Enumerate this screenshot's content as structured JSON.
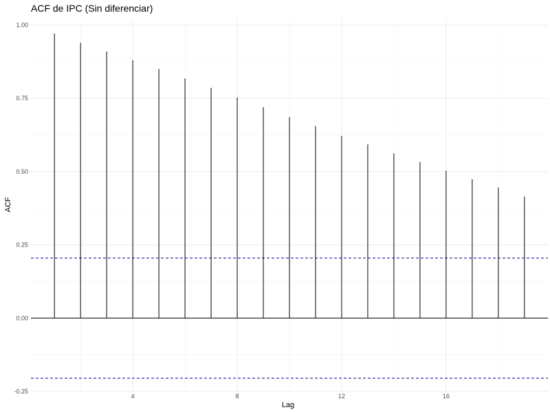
{
  "chart_data": {
    "type": "bar",
    "subtype": "acf-lollipop",
    "title": "ACF de IPC (Sin diferenciar)",
    "xlabel": "Lag",
    "ylabel": "ACF",
    "xlim": [
      0.1,
      19.9
    ],
    "ylim": [
      -0.25,
      1.02
    ],
    "x_ticks": [
      4,
      8,
      12,
      16
    ],
    "x_tick_labels": [
      "4",
      "8",
      "12",
      "16"
    ],
    "y_ticks": [
      -0.25,
      0,
      0.25,
      0.5,
      0.75,
      1.0
    ],
    "y_tick_labels": [
      "-0.25",
      "0.00",
      "0.25",
      "0.50",
      "0.75",
      "1.00"
    ],
    "grid": true,
    "legend": "none",
    "lags": [
      1,
      2,
      3,
      4,
      5,
      6,
      7,
      8,
      9,
      10,
      11,
      12,
      13,
      14,
      15,
      16,
      17,
      18,
      19
    ],
    "values": [
      0.971,
      0.94,
      0.91,
      0.88,
      0.85,
      0.818,
      0.786,
      0.753,
      0.72,
      0.686,
      0.655,
      0.622,
      0.593,
      0.562,
      0.533,
      0.503,
      0.474,
      0.446,
      0.415
    ],
    "confidence_bounds": [
      0.205,
      -0.205
    ],
    "colors": {
      "spike": "#000000",
      "zero_line": "#000000",
      "confidence_line": "#00008b"
    }
  }
}
